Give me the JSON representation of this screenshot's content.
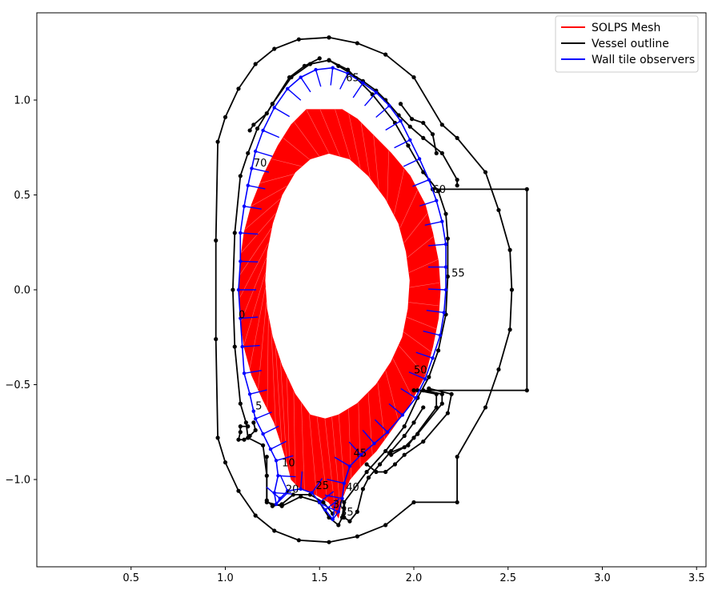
{
  "chart_data": {
    "type": "line",
    "title": "",
    "xlabel": "",
    "ylabel": "",
    "xlim": [
      0.0,
      3.55
    ],
    "ylim": [
      -1.46,
      1.46
    ],
    "xticks": [
      0.5,
      1.0,
      1.5,
      2.0,
      2.5,
      3.0,
      3.5
    ],
    "yticks": [
      -1.0,
      -0.5,
      0.0,
      0.5,
      1.0
    ],
    "xtick_labels": [
      "0.5",
      "1.0",
      "1.5",
      "2.0",
      "2.5",
      "3.0",
      "3.5"
    ],
    "ytick_labels": [
      "−1.0",
      "−0.5",
      "0.0",
      "0.5",
      "1.0"
    ],
    "legend": {
      "position": "top-right",
      "entries": [
        {
          "label": "SOLPS Mesh",
          "color": "#ff0000"
        },
        {
          "label": "Vessel outline",
          "color": "#000000"
        },
        {
          "label": "Wall tile observers",
          "color": "#0000ff"
        }
      ]
    },
    "series": [
      {
        "name": "Vessel outline",
        "color": "#000000",
        "lines": [
          [
            [
              1.55,
              1.33
            ],
            [
              1.39,
              1.32
            ],
            [
              1.26,
              1.27
            ],
            [
              1.16,
              1.19
            ],
            [
              1.07,
              1.06
            ],
            [
              1.0,
              0.91
            ],
            [
              0.96,
              0.78
            ],
            [
              0.95,
              0.26
            ],
            [
              0.95,
              -0.26
            ],
            [
              0.96,
              -0.78
            ],
            [
              1.0,
              -0.91
            ],
            [
              1.07,
              -1.06
            ],
            [
              1.16,
              -1.19
            ],
            [
              1.26,
              -1.27
            ],
            [
              1.39,
              -1.32
            ],
            [
              1.55,
              -1.33
            ],
            [
              1.7,
              -1.3
            ],
            [
              1.85,
              -1.24
            ],
            [
              2.0,
              -1.12
            ],
            [
              2.23,
              -1.12
            ],
            [
              2.23,
              -0.88
            ],
            [
              2.38,
              -0.62
            ],
            [
              2.45,
              -0.42
            ],
            [
              2.51,
              -0.21
            ],
            [
              2.52,
              0.0
            ],
            [
              2.51,
              0.21
            ],
            [
              2.45,
              0.42
            ],
            [
              2.38,
              0.62
            ],
            [
              2.23,
              0.8
            ],
            [
              2.15,
              0.87
            ],
            [
              2.0,
              1.12
            ],
            [
              1.85,
              1.24
            ],
            [
              1.7,
              1.3
            ],
            [
              1.55,
              1.33
            ]
          ],
          [
            [
              2.1,
              0.53
            ],
            [
              2.6,
              0.53
            ],
            [
              2.6,
              -0.53
            ],
            [
              2.0,
              -0.53
            ]
          ],
          [
            [
              1.55,
              1.21
            ],
            [
              1.45,
              1.19
            ],
            [
              1.35,
              1.12
            ],
            [
              1.25,
              0.98
            ],
            [
              1.17,
              0.85
            ],
            [
              1.12,
              0.72
            ],
            [
              1.08,
              0.6
            ],
            [
              1.05,
              0.3
            ],
            [
              1.04,
              0.0
            ],
            [
              1.05,
              -0.3
            ],
            [
              1.08,
              -0.6
            ],
            [
              1.11,
              -0.7
            ],
            [
              1.12,
              -0.78
            ],
            [
              1.2,
              -0.82
            ],
            [
              1.22,
              -0.98
            ],
            [
              1.22,
              -1.12
            ],
            [
              1.3,
              -1.14
            ],
            [
              1.4,
              -1.09
            ],
            [
              1.5,
              -1.12
            ],
            [
              1.55,
              -1.2
            ],
            [
              1.6,
              -1.24
            ],
            [
              1.62,
              -1.2
            ],
            [
              1.63,
              -1.12
            ],
            [
              1.75,
              -0.96
            ],
            [
              1.85,
              -0.85
            ],
            [
              1.95,
              -0.72
            ],
            [
              2.02,
              -0.57
            ],
            [
              2.08,
              -0.46
            ],
            [
              2.13,
              -0.32
            ],
            [
              2.17,
              -0.13
            ],
            [
              2.18,
              0.07
            ],
            [
              2.18,
              0.27
            ],
            [
              2.17,
              0.4
            ],
            [
              2.13,
              0.52
            ],
            [
              2.05,
              0.62
            ],
            [
              1.97,
              0.76
            ],
            [
              1.9,
              0.88
            ],
            [
              1.78,
              1.03
            ],
            [
              1.65,
              1.16
            ],
            [
              1.55,
              1.21
            ]
          ],
          [
            [
              1.5,
              1.22
            ],
            [
              1.42,
              1.18
            ],
            [
              1.34,
              1.12
            ],
            [
              1.25,
              0.98
            ],
            [
              1.22,
              0.93
            ],
            [
              1.15,
              0.87
            ],
            [
              1.13,
              0.84
            ]
          ],
          [
            [
              1.55,
              1.21
            ],
            [
              1.6,
              1.18
            ],
            [
              1.73,
              1.1
            ],
            [
              1.8,
              1.05
            ],
            [
              1.85,
              1.0
            ],
            [
              1.92,
              0.92
            ],
            [
              1.98,
              0.86
            ],
            [
              2.05,
              0.8
            ],
            [
              2.15,
              0.72
            ],
            [
              2.23,
              0.58
            ],
            [
              2.23,
              0.55
            ]
          ],
          [
            [
              1.93,
              0.98
            ],
            [
              1.99,
              0.9
            ],
            [
              2.05,
              0.88
            ],
            [
              2.1,
              0.82
            ],
            [
              2.12,
              0.72
            ]
          ],
          [
            [
              1.12,
              -0.72
            ],
            [
              1.08,
              -0.72
            ],
            [
              1.08,
              -0.75
            ],
            [
              1.07,
              -0.79
            ],
            [
              1.1,
              -0.79
            ],
            [
              1.13,
              -0.77
            ],
            [
              1.16,
              -0.74
            ],
            [
              1.15,
              -0.7
            ]
          ],
          [
            [
              1.22,
              -0.88
            ],
            [
              1.22,
              -1.11
            ],
            [
              1.25,
              -1.14
            ],
            [
              1.3,
              -1.13
            ],
            [
              1.36,
              -1.08
            ],
            [
              1.45,
              -1.08
            ],
            [
              1.52,
              -1.12
            ],
            [
              1.57,
              -1.18
            ]
          ],
          [
            [
              2.02,
              -0.53
            ],
            [
              2.12,
              -0.55
            ],
            [
              2.12,
              -0.62
            ],
            [
              2.0,
              -0.78
            ],
            [
              1.97,
              -0.82
            ],
            [
              1.87,
              -0.86
            ]
          ],
          [
            [
              2.05,
              -0.53
            ],
            [
              2.15,
              -0.55
            ],
            [
              2.15,
              -0.6
            ],
            [
              2.02,
              -0.76
            ],
            [
              1.95,
              -0.83
            ],
            [
              1.88,
              -0.87
            ]
          ],
          [
            [
              1.75,
              -0.92
            ],
            [
              1.8,
              -0.96
            ],
            [
              1.85,
              -0.96
            ],
            [
              1.9,
              -0.92
            ],
            [
              1.95,
              -0.87
            ],
            [
              2.05,
              -0.8
            ],
            [
              2.18,
              -0.65
            ],
            [
              2.2,
              -0.55
            ],
            [
              2.08,
              -0.52
            ]
          ],
          [
            [
              1.63,
              -1.15
            ],
            [
              1.63,
              -1.2
            ],
            [
              1.66,
              -1.22
            ],
            [
              1.7,
              -1.17
            ],
            [
              1.73,
              -1.05
            ],
            [
              1.76,
              -0.99
            ],
            [
              1.82,
              -0.92
            ],
            [
              1.88,
              -0.85
            ],
            [
              1.95,
              -0.77
            ],
            [
              2.0,
              -0.7
            ],
            [
              2.05,
              -0.62
            ]
          ]
        ]
      }
    ],
    "mesh": {
      "name": "SOLPS Mesh",
      "color": "#ff0000",
      "outer_boundary": [
        [
          1.43,
          0.95
        ],
        [
          1.35,
          0.87
        ],
        [
          1.28,
          0.76
        ],
        [
          1.2,
          0.6
        ],
        [
          1.14,
          0.45
        ],
        [
          1.1,
          0.3
        ],
        [
          1.08,
          0.15
        ],
        [
          1.07,
          0.0
        ],
        [
          1.08,
          -0.15
        ],
        [
          1.1,
          -0.3
        ],
        [
          1.14,
          -0.45
        ],
        [
          1.2,
          -0.58
        ],
        [
          1.26,
          -0.7
        ],
        [
          1.3,
          -0.82
        ],
        [
          1.33,
          -0.92
        ],
        [
          1.35,
          -1.0
        ],
        [
          1.4,
          -1.05
        ],
        [
          1.48,
          -1.08
        ],
        [
          1.55,
          -1.12
        ],
        [
          1.6,
          -1.2
        ],
        [
          1.62,
          -1.1
        ],
        [
          1.66,
          -1.0
        ],
        [
          1.72,
          -0.93
        ],
        [
          1.8,
          -0.85
        ],
        [
          1.88,
          -0.74
        ],
        [
          1.98,
          -0.6
        ],
        [
          2.06,
          -0.45
        ],
        [
          2.1,
          -0.3
        ],
        [
          2.13,
          -0.15
        ],
        [
          2.14,
          0.0
        ],
        [
          2.13,
          0.15
        ],
        [
          2.1,
          0.3
        ],
        [
          2.06,
          0.45
        ],
        [
          1.98,
          0.6
        ],
        [
          1.88,
          0.72
        ],
        [
          1.78,
          0.82
        ],
        [
          1.7,
          0.9
        ],
        [
          1.62,
          0.95
        ],
        [
          1.52,
          0.95
        ],
        [
          1.43,
          0.95
        ]
      ],
      "inner_boundary": [
        [
          1.55,
          0.72
        ],
        [
          1.45,
          0.69
        ],
        [
          1.37,
          0.62
        ],
        [
          1.3,
          0.5
        ],
        [
          1.25,
          0.35
        ],
        [
          1.22,
          0.2
        ],
        [
          1.21,
          0.05
        ],
        [
          1.22,
          -0.1
        ],
        [
          1.25,
          -0.25
        ],
        [
          1.3,
          -0.4
        ],
        [
          1.37,
          -0.55
        ],
        [
          1.45,
          -0.66
        ],
        [
          1.53,
          -0.68
        ],
        [
          1.6,
          -0.66
        ],
        [
          1.7,
          -0.6
        ],
        [
          1.8,
          -0.5
        ],
        [
          1.88,
          -0.38
        ],
        [
          1.94,
          -0.25
        ],
        [
          1.97,
          -0.1
        ],
        [
          1.98,
          0.05
        ],
        [
          1.96,
          0.2
        ],
        [
          1.92,
          0.35
        ],
        [
          1.85,
          0.48
        ],
        [
          1.76,
          0.6
        ],
        [
          1.66,
          0.69
        ],
        [
          1.55,
          0.72
        ]
      ]
    },
    "observers": {
      "name": "Wall tile observers",
      "color": "#0000ff",
      "path": [
        [
          1.15,
          -0.64
        ],
        [
          1.13,
          -0.55
        ],
        [
          1.1,
          -0.44
        ],
        [
          1.09,
          -0.3
        ],
        [
          1.08,
          -0.15
        ],
        [
          1.07,
          0.0
        ],
        [
          1.08,
          0.15
        ],
        [
          1.08,
          0.3
        ],
        [
          1.1,
          0.44
        ],
        [
          1.12,
          0.55
        ],
        [
          1.14,
          0.64
        ],
        [
          1.16,
          0.73
        ],
        [
          1.2,
          0.84
        ],
        [
          1.26,
          0.96
        ],
        [
          1.33,
          1.06
        ],
        [
          1.4,
          1.12
        ],
        [
          1.48,
          1.16
        ],
        [
          1.57,
          1.17
        ],
        [
          1.65,
          1.14
        ],
        [
          1.73,
          1.09
        ],
        [
          1.8,
          1.04
        ],
        [
          1.87,
          0.97
        ],
        [
          1.93,
          0.89
        ],
        [
          1.98,
          0.79
        ],
        [
          2.03,
          0.69
        ],
        [
          2.08,
          0.58
        ],
        [
          2.12,
          0.47
        ],
        [
          2.15,
          0.36
        ],
        [
          2.17,
          0.24
        ],
        [
          2.17,
          0.12
        ],
        [
          2.17,
          0.0
        ],
        [
          2.16,
          -0.12
        ],
        [
          2.14,
          -0.24
        ],
        [
          2.1,
          -0.36
        ],
        [
          2.06,
          -0.47
        ],
        [
          2.01,
          -0.57
        ],
        [
          1.94,
          -0.66
        ],
        [
          1.86,
          -0.75
        ],
        [
          1.79,
          -0.81
        ],
        [
          1.72,
          -0.87
        ],
        [
          1.66,
          -0.93
        ],
        [
          1.63,
          -1.02
        ],
        [
          1.62,
          -1.1
        ],
        [
          1.6,
          -1.17
        ],
        [
          1.57,
          -1.21
        ],
        [
          1.53,
          -1.16
        ],
        [
          1.5,
          -1.12
        ],
        [
          1.46,
          -1.07
        ],
        [
          1.4,
          -1.05
        ],
        [
          1.33,
          -1.06
        ],
        [
          1.29,
          -1.1
        ],
        [
          1.27,
          -1.13
        ],
        [
          1.26,
          -1.07
        ],
        [
          1.28,
          -0.98
        ],
        [
          1.27,
          -0.9
        ],
        [
          1.24,
          -0.84
        ],
        [
          1.2,
          -0.76
        ],
        [
          1.16,
          -0.68
        ],
        [
          1.15,
          -0.64
        ]
      ],
      "labels": [
        {
          "text": "0",
          "x": 1.07,
          "y": -0.15
        },
        {
          "text": "5",
          "x": 1.16,
          "y": -0.63
        },
        {
          "text": "10",
          "x": 1.3,
          "y": -0.93
        },
        {
          "text": "20",
          "x": 1.32,
          "y": -1.07
        },
        {
          "text": "25",
          "x": 1.48,
          "y": -1.05
        },
        {
          "text": "30",
          "x": 1.57,
          "y": -1.15
        },
        {
          "text": "35",
          "x": 1.61,
          "y": -1.19
        },
        {
          "text": "40",
          "x": 1.64,
          "y": -1.06
        },
        {
          "text": "45",
          "x": 1.68,
          "y": -0.88
        },
        {
          "text": "50",
          "x": 2.0,
          "y": -0.44
        },
        {
          "text": "55",
          "x": 2.2,
          "y": 0.07
        },
        {
          "text": "60",
          "x": 2.1,
          "y": 0.51
        },
        {
          "text": "65",
          "x": 1.64,
          "y": 1.1
        },
        {
          "text": "70",
          "x": 1.15,
          "y": 0.65
        }
      ]
    }
  }
}
